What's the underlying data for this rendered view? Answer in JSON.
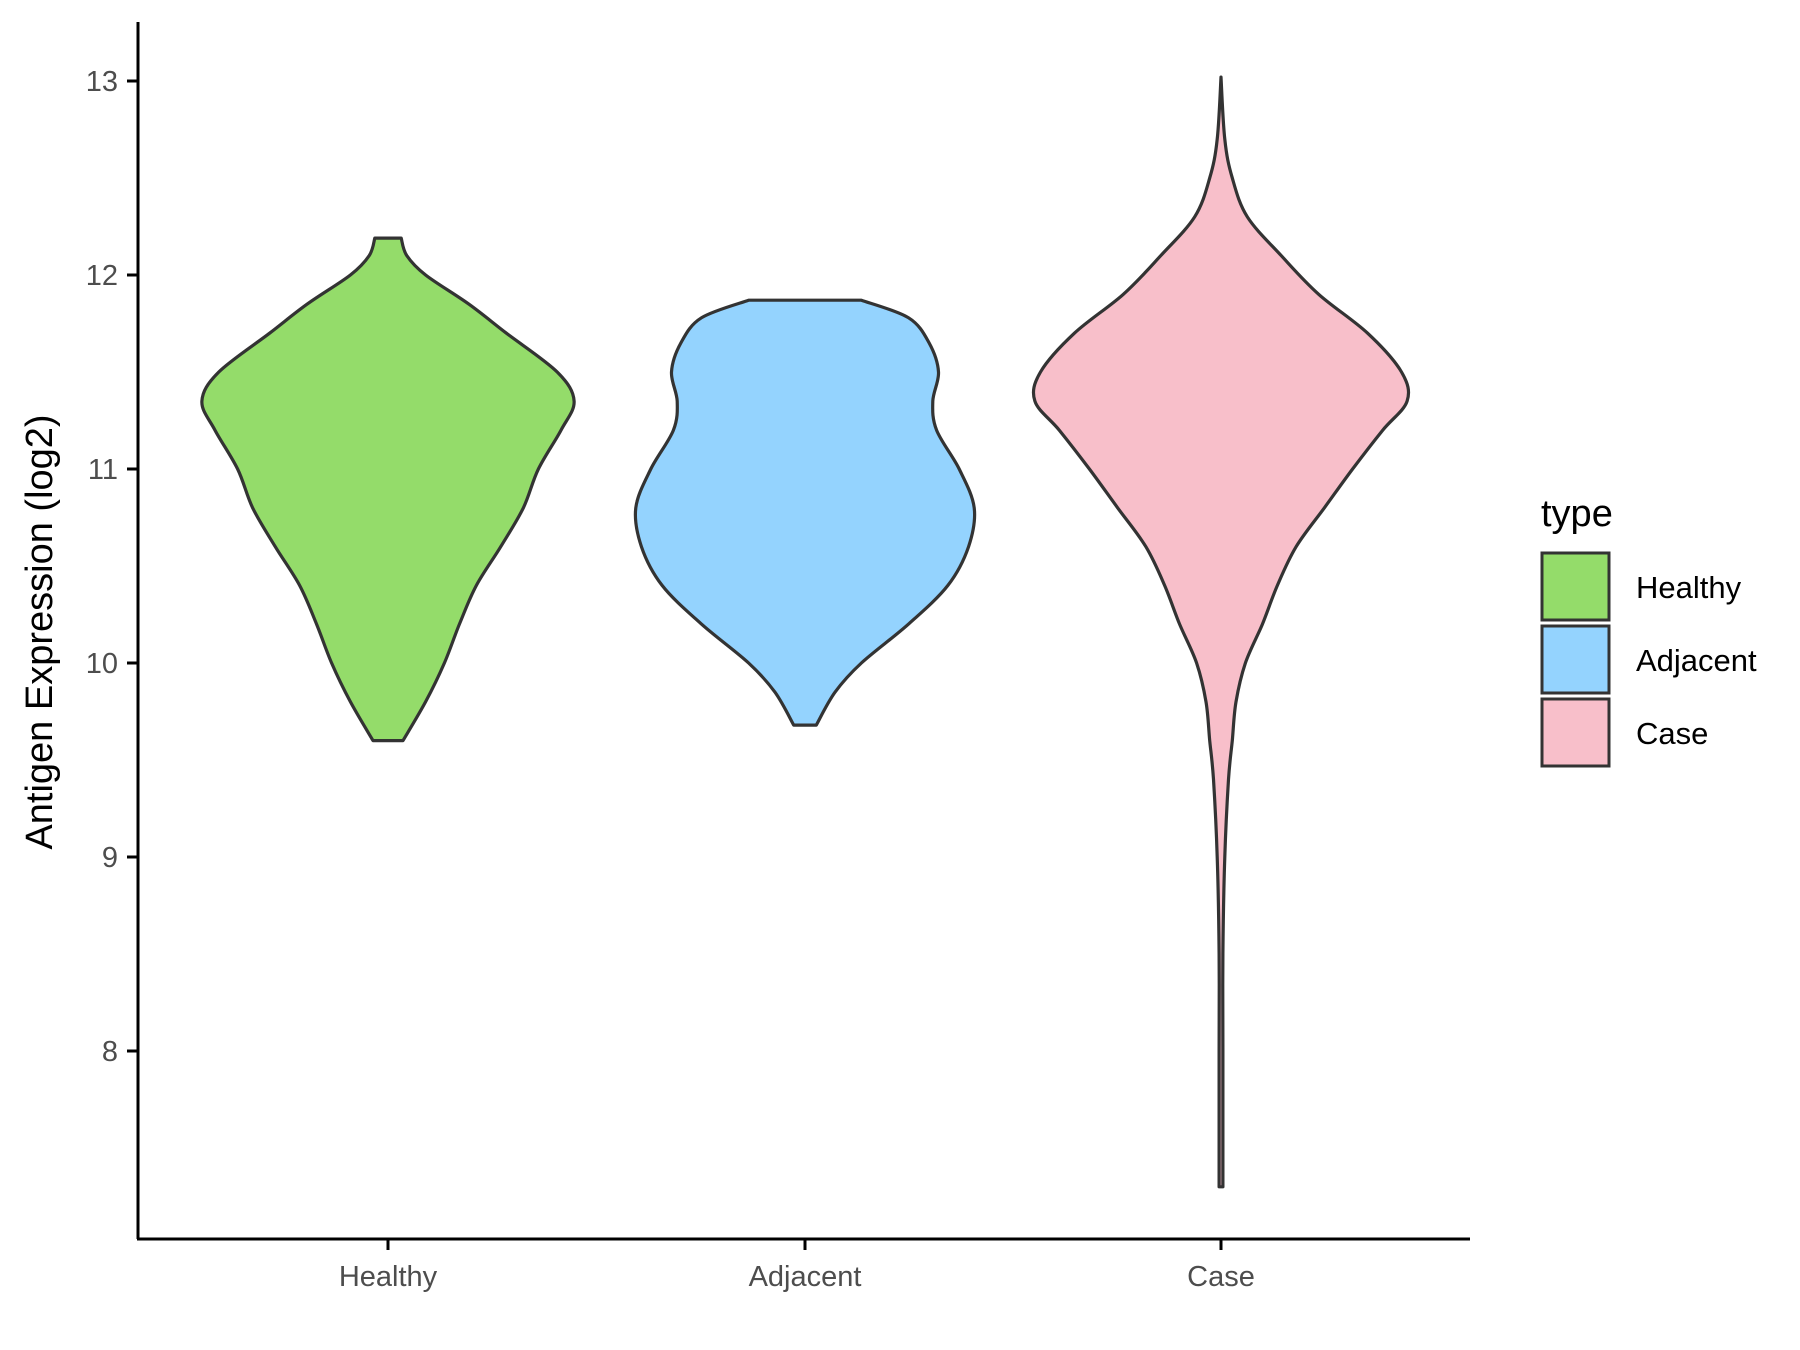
{
  "chart_data": {
    "type": "violin",
    "title": "",
    "xlabel": "",
    "ylabel": "Antigen Expression (log2)",
    "categories": [
      "Healthy",
      "Adjacent",
      "Case"
    ],
    "yticks": [
      8,
      9,
      10,
      11,
      12,
      13
    ],
    "ylim": [
      7.0,
      13.3
    ],
    "grid": false,
    "legend": {
      "title": "type",
      "position": "right",
      "entries": [
        "Healthy",
        "Adjacent",
        "Case"
      ]
    },
    "colors": {
      "Healthy": "#94dc6a",
      "Adjacent": "#94d3fe",
      "Case": "#f8bfca",
      "outline": "#333333"
    },
    "series": [
      {
        "name": "Healthy",
        "ymin": 9.6,
        "ymax": 12.19,
        "profile": [
          [
            9.6,
            0.08
          ],
          [
            9.8,
            0.2
          ],
          [
            10.0,
            0.3
          ],
          [
            10.2,
            0.38
          ],
          [
            10.4,
            0.47
          ],
          [
            10.6,
            0.6
          ],
          [
            10.8,
            0.72
          ],
          [
            11.0,
            0.8
          ],
          [
            11.2,
            0.92
          ],
          [
            11.35,
            0.99
          ],
          [
            11.5,
            0.9
          ],
          [
            11.7,
            0.63
          ],
          [
            11.85,
            0.43
          ],
          [
            12.0,
            0.2
          ],
          [
            12.1,
            0.1
          ],
          [
            12.19,
            0.07
          ]
        ]
      },
      {
        "name": "Adjacent",
        "ymin": 9.68,
        "ymax": 11.87,
        "profile": [
          [
            9.68,
            0.06
          ],
          [
            9.85,
            0.16
          ],
          [
            10.0,
            0.3
          ],
          [
            10.2,
            0.55
          ],
          [
            10.4,
            0.76
          ],
          [
            10.6,
            0.87
          ],
          [
            10.8,
            0.9
          ],
          [
            11.0,
            0.82
          ],
          [
            11.2,
            0.7
          ],
          [
            11.35,
            0.68
          ],
          [
            11.5,
            0.71
          ],
          [
            11.65,
            0.66
          ],
          [
            11.78,
            0.55
          ],
          [
            11.87,
            0.3
          ]
        ]
      },
      {
        "name": "Case",
        "ymin": 7.3,
        "ymax": 13.02,
        "profile": [
          [
            7.3,
            0.01
          ],
          [
            8.0,
            0.01
          ],
          [
            8.5,
            0.01
          ],
          [
            9.0,
            0.02
          ],
          [
            9.4,
            0.04
          ],
          [
            9.6,
            0.06
          ],
          [
            9.8,
            0.08
          ],
          [
            10.0,
            0.13
          ],
          [
            10.2,
            0.22
          ],
          [
            10.4,
            0.3
          ],
          [
            10.6,
            0.4
          ],
          [
            10.8,
            0.55
          ],
          [
            11.0,
            0.7
          ],
          [
            11.2,
            0.86
          ],
          [
            11.35,
            0.99
          ],
          [
            11.5,
            0.96
          ],
          [
            11.7,
            0.78
          ],
          [
            11.9,
            0.52
          ],
          [
            12.1,
            0.32
          ],
          [
            12.3,
            0.14
          ],
          [
            12.5,
            0.06
          ],
          [
            12.7,
            0.02
          ],
          [
            13.02,
            0.0
          ]
        ]
      }
    ]
  }
}
